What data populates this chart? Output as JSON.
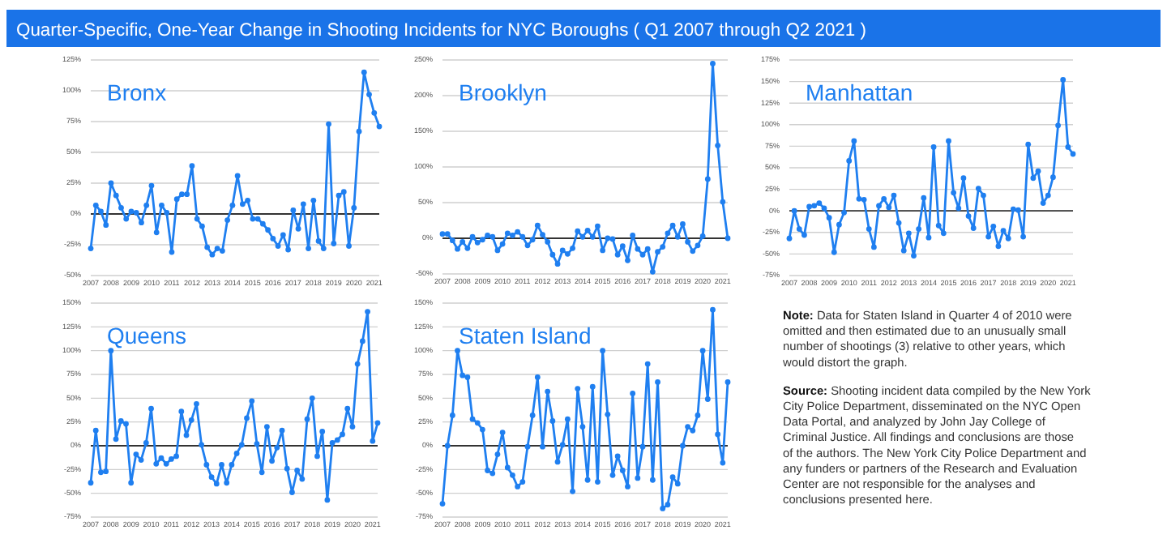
{
  "chart_data": [
    {
      "type": "other",
      "title": "Quarter-Specific, One-Year Change in Shooting Incidents for NYC Boroughs ( Q1 2007 through Q2 2021 )",
      "annotations": [
        "Note: Data for Staten Island in Quarter 4 of 2010 were omitted and then estimated due to an unusually small number of shootings (3) relative to other years, which would distort the graph.",
        "Source: Shooting incident data compiled by the New York City Police Department, disseminated on the NYC Open Data Portal, and analyzed by John Jay College of Criminal Justice. All findings and conclusions are those of the authors. The New York City Police Department and any funders or partners of the Research and Evaluation Center are not responsible for the analyses and conclusions presented here."
      ]
    },
    {
      "type": "line",
      "title": "Bronx",
      "x": [
        2007,
        2007.25,
        2007.5,
        2007.75,
        2008,
        2008.25,
        2008.5,
        2008.75,
        2009,
        2009.25,
        2009.5,
        2009.75,
        2010,
        2010.25,
        2010.5,
        2010.75,
        2011,
        2011.25,
        2011.5,
        2011.75,
        2012,
        2012.25,
        2012.5,
        2012.75,
        2013,
        2013.25,
        2013.5,
        2013.75,
        2014,
        2014.25,
        2014.5,
        2014.75,
        2015,
        2015.25,
        2015.5,
        2015.75,
        2016,
        2016.25,
        2016.5,
        2016.75,
        2017,
        2017.25,
        2017.5,
        2017.75,
        2018,
        2018.25,
        2018.5,
        2018.75,
        2019,
        2019.25,
        2019.5,
        2019.75,
        2020,
        2020.25,
        2020.5,
        2020.75,
        2021,
        2021.25
      ],
      "series": [
        {
          "color": "#1f7ff0",
          "values": [
            -28,
            7,
            2,
            -9,
            25,
            15,
            5,
            -4,
            2,
            1,
            -7,
            7,
            23,
            -15,
            7,
            1,
            -31,
            12,
            16,
            16,
            39,
            -4,
            -10,
            -27,
            -33,
            -28,
            -30,
            -5,
            7,
            31,
            8,
            11,
            -4,
            -4,
            -8,
            -13,
            -20,
            -26,
            -17,
            -29,
            3,
            -12,
            8,
            -28,
            11,
            -22,
            -28,
            73,
            -24,
            15,
            18,
            -26,
            5,
            67,
            115,
            97,
            82,
            71
          ]
        }
      ],
      "xlim": [
        2007,
        2021.25
      ],
      "xticks": [
        2007,
        2008,
        2009,
        2010,
        2011,
        2012,
        2013,
        2014,
        2015,
        2016,
        2017,
        2018,
        2019,
        2020,
        2021
      ],
      "ylim": [
        -50,
        125
      ],
      "yticks": [
        {
          "value": -50,
          "label": "-50%"
        },
        {
          "value": -25,
          "label": "-25%"
        },
        {
          "value": 0,
          "label": "0%"
        },
        {
          "value": 25,
          "label": "25%"
        },
        {
          "value": 50,
          "label": "50%"
        },
        {
          "value": 75,
          "label": "75%"
        },
        {
          "value": 100,
          "label": "100%"
        },
        {
          "value": 125,
          "label": "125%"
        }
      ],
      "ref_lines": [
        {
          "axis": "y",
          "value": 0,
          "color": "#333333"
        }
      ],
      "grid": "y",
      "marker": "circle",
      "line_style": "solid"
    },
    {
      "type": "line",
      "title": "Brooklyn",
      "x": [
        2007,
        2007.25,
        2007.5,
        2007.75,
        2008,
        2008.25,
        2008.5,
        2008.75,
        2009,
        2009.25,
        2009.5,
        2009.75,
        2010,
        2010.25,
        2010.5,
        2010.75,
        2011,
        2011.25,
        2011.5,
        2011.75,
        2012,
        2012.25,
        2012.5,
        2012.75,
        2013,
        2013.25,
        2013.5,
        2013.75,
        2014,
        2014.25,
        2014.5,
        2014.75,
        2015,
        2015.25,
        2015.5,
        2015.75,
        2016,
        2016.25,
        2016.5,
        2016.75,
        2017,
        2017.25,
        2017.5,
        2017.75,
        2018,
        2018.25,
        2018.5,
        2018.75,
        2019,
        2019.25,
        2019.5,
        2019.75,
        2020,
        2020.25,
        2020.5,
        2020.75,
        2021,
        2021.25
      ],
      "series": [
        {
          "color": "#1f7ff0",
          "values": [
            6,
            6,
            -3,
            -15,
            -5,
            -14,
            2,
            -6,
            -2,
            4,
            2,
            -17,
            -8,
            7,
            4,
            9,
            2,
            -10,
            -2,
            18,
            5,
            -5,
            -23,
            -36,
            -17,
            -22,
            -14,
            10,
            2,
            11,
            2,
            17,
            -17,
            0,
            -1,
            -23,
            -11,
            -31,
            4,
            -15,
            -23,
            -15,
            -47,
            -19,
            -12,
            7,
            18,
            2,
            20,
            -5,
            -18,
            -10,
            3,
            83,
            245,
            130,
            51,
            0
          ]
        }
      ],
      "xlim": [
        2007,
        2021.25
      ],
      "xticks": [
        2007,
        2008,
        2009,
        2010,
        2011,
        2012,
        2013,
        2014,
        2015,
        2016,
        2017,
        2018,
        2019,
        2020,
        2021
      ],
      "ylim": [
        -50,
        250
      ],
      "yticks": [
        {
          "value": -50,
          "label": "-50%"
        },
        {
          "value": 0,
          "label": "0%"
        },
        {
          "value": 50,
          "label": "50%"
        },
        {
          "value": 100,
          "label": "100%"
        },
        {
          "value": 150,
          "label": "150%"
        },
        {
          "value": 200,
          "label": "200%"
        },
        {
          "value": 250,
          "label": "250%"
        }
      ],
      "ref_lines": [
        {
          "axis": "y",
          "value": 0,
          "color": "#333333"
        }
      ],
      "grid": "y",
      "marker": "circle",
      "line_style": "solid"
    },
    {
      "type": "line",
      "title": "Manhattan",
      "x": [
        2007,
        2007.25,
        2007.5,
        2007.75,
        2008,
        2008.25,
        2008.5,
        2008.75,
        2009,
        2009.25,
        2009.5,
        2009.75,
        2010,
        2010.25,
        2010.5,
        2010.75,
        2011,
        2011.25,
        2011.5,
        2011.75,
        2012,
        2012.25,
        2012.5,
        2012.75,
        2013,
        2013.25,
        2013.5,
        2013.75,
        2014,
        2014.25,
        2014.5,
        2014.75,
        2015,
        2015.25,
        2015.5,
        2015.75,
        2016,
        2016.25,
        2016.5,
        2016.75,
        2017,
        2017.25,
        2017.5,
        2017.75,
        2018,
        2018.25,
        2018.5,
        2018.75,
        2019,
        2019.25,
        2019.5,
        2019.75,
        2020,
        2020.25,
        2020.5,
        2020.75,
        2021,
        2021.25
      ],
      "series": [
        {
          "color": "#1f7ff0",
          "values": [
            -32,
            0,
            -21,
            -28,
            5,
            6,
            9,
            3,
            -8,
            -48,
            -16,
            -2,
            58,
            81,
            14,
            13,
            -21,
            -42,
            6,
            14,
            4,
            18,
            -14,
            -46,
            -26,
            -52,
            -21,
            15,
            -31,
            74,
            -17,
            -26,
            81,
            21,
            3,
            38,
            -6,
            -20,
            26,
            18,
            -30,
            -18,
            -41,
            -23,
            -32,
            2,
            1,
            -30,
            77,
            38,
            46,
            9,
            18,
            39,
            99,
            152,
            74,
            66
          ]
        }
      ],
      "xlim": [
        2007,
        2021.25
      ],
      "xticks": [
        2007,
        2008,
        2009,
        2010,
        2011,
        2012,
        2013,
        2014,
        2015,
        2016,
        2017,
        2018,
        2019,
        2020,
        2021
      ],
      "ylim": [
        -75,
        175
      ],
      "yticks": [
        {
          "value": -75,
          "label": "-75%"
        },
        {
          "value": -50,
          "label": "-50%"
        },
        {
          "value": -25,
          "label": "-25%"
        },
        {
          "value": 0,
          "label": "0%"
        },
        {
          "value": 25,
          "label": "25%"
        },
        {
          "value": 50,
          "label": "50%"
        },
        {
          "value": 75,
          "label": "75%"
        },
        {
          "value": 100,
          "label": "100%"
        },
        {
          "value": 125,
          "label": "125%"
        },
        {
          "value": 150,
          "label": "150%"
        },
        {
          "value": 175,
          "label": "175%"
        }
      ],
      "ref_lines": [
        {
          "axis": "y",
          "value": 0,
          "color": "#333333"
        }
      ],
      "grid": "y",
      "marker": "circle",
      "line_style": "solid"
    },
    {
      "type": "line",
      "title": "Queens",
      "x": [
        2007,
        2007.25,
        2007.5,
        2007.75,
        2008,
        2008.25,
        2008.5,
        2008.75,
        2009,
        2009.25,
        2009.5,
        2009.75,
        2010,
        2010.25,
        2010.5,
        2010.75,
        2011,
        2011.25,
        2011.5,
        2011.75,
        2012,
        2012.25,
        2012.5,
        2012.75,
        2013,
        2013.25,
        2013.5,
        2013.75,
        2014,
        2014.25,
        2014.5,
        2014.75,
        2015,
        2015.25,
        2015.5,
        2015.75,
        2016,
        2016.25,
        2016.5,
        2016.75,
        2017,
        2017.25,
        2017.5,
        2017.75,
        2018,
        2018.25,
        2018.5,
        2018.75,
        2019,
        2019.25,
        2019.5,
        2019.75,
        2020,
        2020.25,
        2020.5,
        2020.75,
        2021,
        2021.25
      ],
      "series": [
        {
          "color": "#1f7ff0",
          "values": [
            -39,
            16,
            -28,
            -27,
            100,
            7,
            26,
            23,
            -39,
            -9,
            -15,
            3,
            39,
            -19,
            -13,
            -19,
            -14,
            -11,
            36,
            11,
            27,
            44,
            1,
            -20,
            -33,
            -40,
            -20,
            -39,
            -20,
            -8,
            1,
            29,
            47,
            2,
            -28,
            20,
            -16,
            -2,
            16,
            -24,
            -49,
            -26,
            -35,
            28,
            50,
            -11,
            15,
            -57,
            3,
            6,
            12,
            39,
            20,
            86,
            110,
            141,
            5,
            24
          ]
        }
      ],
      "xlim": [
        2007,
        2021.25
      ],
      "xticks": [
        2007,
        2008,
        2009,
        2010,
        2011,
        2012,
        2013,
        2014,
        2015,
        2016,
        2017,
        2018,
        2019,
        2020,
        2021
      ],
      "ylim": [
        -75,
        150
      ],
      "yticks": [
        {
          "value": -75,
          "label": "-75%"
        },
        {
          "value": -50,
          "label": "-50%"
        },
        {
          "value": -25,
          "label": "-25%"
        },
        {
          "value": 0,
          "label": "0%"
        },
        {
          "value": 25,
          "label": "25%"
        },
        {
          "value": 50,
          "label": "50%"
        },
        {
          "value": 75,
          "label": "75%"
        },
        {
          "value": 100,
          "label": "100%"
        },
        {
          "value": 125,
          "label": "125%"
        },
        {
          "value": 150,
          "label": "150%"
        }
      ],
      "ref_lines": [
        {
          "axis": "y",
          "value": 0,
          "color": "#333333"
        }
      ],
      "grid": "y",
      "marker": "circle",
      "line_style": "solid"
    },
    {
      "type": "line",
      "title": "Staten Island",
      "x": [
        2007,
        2007.25,
        2007.5,
        2007.75,
        2008,
        2008.25,
        2008.5,
        2008.75,
        2009,
        2009.25,
        2009.5,
        2009.75,
        2010,
        2010.25,
        2010.5,
        2010.75,
        2011,
        2011.25,
        2011.5,
        2011.75,
        2012,
        2012.25,
        2012.5,
        2012.75,
        2013,
        2013.25,
        2013.5,
        2013.75,
        2014,
        2014.25,
        2014.5,
        2014.75,
        2015,
        2015.25,
        2015.5,
        2015.75,
        2016,
        2016.25,
        2016.5,
        2016.75,
        2017,
        2017.25,
        2017.5,
        2017.75,
        2018,
        2018.25,
        2018.5,
        2018.75,
        2019,
        2019.25,
        2019.5,
        2019.75,
        2020,
        2020.25,
        2020.5,
        2020.75,
        2021,
        2021.25
      ],
      "series": [
        {
          "color": "#1f7ff0",
          "values": [
            -61,
            0,
            32,
            100,
            74,
            72,
            28,
            24,
            17,
            -26,
            -29,
            -9,
            14,
            -23,
            -31,
            -43,
            -38,
            -1,
            32,
            72,
            -1,
            57,
            26,
            -17,
            1,
            28,
            -48,
            60,
            20,
            -36,
            62,
            -38,
            100,
            33,
            -31,
            -11,
            -26,
            -43,
            55,
            -34,
            -1,
            86,
            -36,
            67,
            -66,
            -62,
            -33,
            -40,
            0,
            20,
            16,
            32,
            100,
            49,
            143,
            12,
            -18,
            67
          ]
        }
      ],
      "xlim": [
        2007,
        2021.25
      ],
      "xticks": [
        2007,
        2008,
        2009,
        2010,
        2011,
        2012,
        2013,
        2014,
        2015,
        2016,
        2017,
        2018,
        2019,
        2020,
        2021
      ],
      "ylim": [
        -75,
        150
      ],
      "yticks": [
        {
          "value": -75,
          "label": "-75%"
        },
        {
          "value": -50,
          "label": "-50%"
        },
        {
          "value": -25,
          "label": "-25%"
        },
        {
          "value": 0,
          "label": "0%"
        },
        {
          "value": 25,
          "label": "25%"
        },
        {
          "value": 50,
          "label": "50%"
        },
        {
          "value": 75,
          "label": "75%"
        },
        {
          "value": 100,
          "label": "100%"
        },
        {
          "value": 125,
          "label": "125%"
        },
        {
          "value": 150,
          "label": "150%"
        }
      ],
      "ref_lines": [
        {
          "axis": "y",
          "value": 0,
          "color": "#333333"
        }
      ],
      "grid": "y",
      "marker": "circle",
      "line_style": "solid"
    }
  ]
}
